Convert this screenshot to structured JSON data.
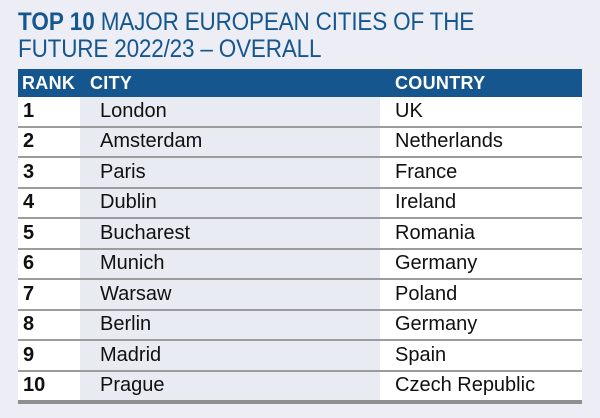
{
  "page": {
    "background_color": "#edeef5",
    "accent_blue": "#15568e",
    "divider_gray": "#9c9c9c",
    "city_column_tint": "#e9ebf2"
  },
  "title": {
    "bold": "TOP 10",
    "line1_rest": " MAJOR EUROPEAN CITIES OF THE",
    "line2": "FUTURE 2022/23 – OVERALL"
  },
  "table": {
    "header": {
      "rank": "RANK",
      "city": "CITY",
      "country": "COUNTRY"
    },
    "rows": [
      {
        "rank": "1",
        "city": "London",
        "country": "UK"
      },
      {
        "rank": "2",
        "city": "Amsterdam",
        "country": "Netherlands"
      },
      {
        "rank": "3",
        "city": "Paris",
        "country": "France"
      },
      {
        "rank": "4",
        "city": "Dublin",
        "country": "Ireland"
      },
      {
        "rank": "5",
        "city": "Bucharest",
        "country": "Romania"
      },
      {
        "rank": "6",
        "city": "Munich",
        "country": "Germany"
      },
      {
        "rank": "7",
        "city": "Warsaw",
        "country": "Poland"
      },
      {
        "rank": "8",
        "city": "Berlin",
        "country": "Germany"
      },
      {
        "rank": "9",
        "city": "Madrid",
        "country": "Spain"
      },
      {
        "rank": "10",
        "city": "Prague",
        "country": "Czech Republic"
      }
    ]
  }
}
